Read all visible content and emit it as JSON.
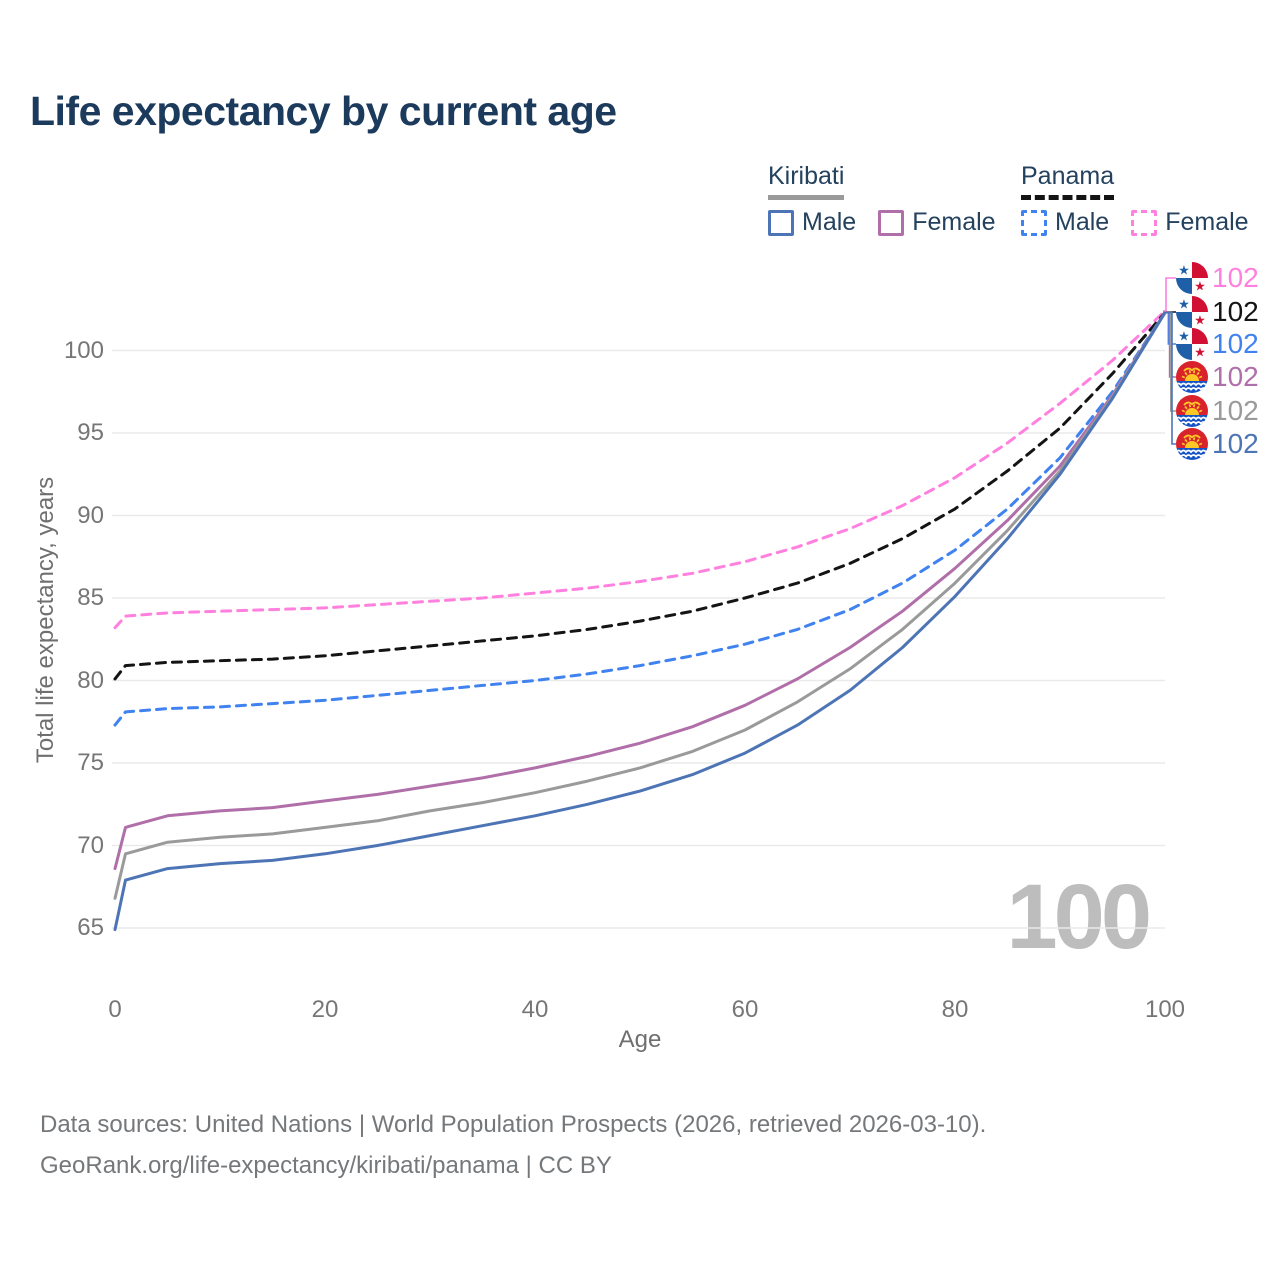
{
  "title": "Life expectancy by current age",
  "legend": {
    "groups": [
      {
        "country": "Kiribati",
        "line_style": "solid",
        "underline_color": "#9a9a9a",
        "items": [
          {
            "label": "Male",
            "color": "#4d74b5",
            "dashed": false
          },
          {
            "label": "Female",
            "color": "#b06fa9",
            "dashed": false
          }
        ]
      },
      {
        "country": "Panama",
        "line_style": "dashed",
        "underline_color": "#141414",
        "items": [
          {
            "label": "Male",
            "color": "#3f82f0",
            "dashed": true
          },
          {
            "label": "Female",
            "color": "#ff80df",
            "dashed": true
          }
        ]
      }
    ]
  },
  "axes": {
    "x": {
      "title": "Age",
      "ticks": [
        "0",
        "20",
        "40",
        "60",
        "80",
        "100"
      ]
    },
    "y": {
      "title": "Total life expectancy, years",
      "ticks": [
        "65",
        "70",
        "75",
        "80",
        "85",
        "90",
        "95",
        "100"
      ]
    }
  },
  "watermark": "100",
  "end_labels": [
    {
      "flag": "panama",
      "series": "Panama Female",
      "value": "102",
      "color": "#ff80df"
    },
    {
      "flag": "panama",
      "series": "Panama Both sexes",
      "value": "102",
      "color": "#141414"
    },
    {
      "flag": "panama",
      "series": "Panama Male",
      "value": "102",
      "color": "#3f82f0"
    },
    {
      "flag": "kiribati",
      "series": "Kiribati Female",
      "value": "102",
      "color": "#b06fa9"
    },
    {
      "flag": "kiribati",
      "series": "Kiribati Both sexes",
      "value": "102",
      "color": "#9a9a9a"
    },
    {
      "flag": "kiribati",
      "series": "Kiribati Male",
      "value": "102",
      "color": "#4d74b5"
    }
  ],
  "footer": {
    "line1": "Data sources: United Nations | World Population Prospects (2026, retrieved 2026-03-10).",
    "line2": "GeoRank.org/life-expectancy/kiribati/panama | CC BY"
  },
  "chart_data": {
    "type": "line",
    "title": "Life expectancy by current age",
    "xlabel": "Age",
    "ylabel": "Total life expectancy, years",
    "xlim": [
      0,
      100
    ],
    "ylim": [
      65,
      100
    ],
    "grid": "horizontal",
    "legend_position": "top-right",
    "x": [
      0,
      1,
      5,
      10,
      15,
      20,
      25,
      30,
      35,
      40,
      45,
      50,
      55,
      60,
      65,
      70,
      75,
      80,
      85,
      90,
      95,
      100
    ],
    "series": [
      {
        "name": "Panama Female",
        "country": "Panama",
        "sex": "Female",
        "color": "#ff80df",
        "dash": true,
        "values": [
          83.2,
          83.9,
          84.1,
          84.2,
          84.3,
          84.4,
          84.6,
          84.8,
          85.0,
          85.3,
          85.6,
          86.0,
          86.5,
          87.2,
          88.1,
          89.2,
          90.6,
          92.3,
          94.4,
          96.8,
          99.4,
          102.4
        ]
      },
      {
        "name": "Panama Both sexes",
        "country": "Panama",
        "sex": "Both",
        "color": "#141414",
        "dash": true,
        "values": [
          80.1,
          80.9,
          81.1,
          81.2,
          81.3,
          81.5,
          81.8,
          82.1,
          82.4,
          82.7,
          83.1,
          83.6,
          84.2,
          85.0,
          85.9,
          87.1,
          88.6,
          90.4,
          92.7,
          95.3,
          98.6,
          102.3
        ]
      },
      {
        "name": "Panama Male",
        "country": "Panama",
        "sex": "Male",
        "color": "#3f82f0",
        "dash": true,
        "values": [
          77.3,
          78.1,
          78.3,
          78.4,
          78.6,
          78.8,
          79.1,
          79.4,
          79.7,
          80.0,
          80.4,
          80.9,
          81.5,
          82.2,
          83.1,
          84.3,
          85.9,
          87.9,
          90.4,
          93.5,
          97.5,
          102.3
        ]
      },
      {
        "name": "Kiribati Female",
        "country": "Kiribati",
        "sex": "Female",
        "color": "#b06fa9",
        "dash": false,
        "values": [
          68.6,
          71.1,
          71.8,
          72.1,
          72.3,
          72.7,
          73.1,
          73.6,
          74.1,
          74.7,
          75.4,
          76.2,
          77.2,
          78.5,
          80.1,
          82.0,
          84.2,
          86.8,
          89.7,
          93.0,
          97.3,
          102.3
        ]
      },
      {
        "name": "Kiribati Both sexes",
        "country": "Kiribati",
        "sex": "Both",
        "color": "#9a9a9a",
        "dash": false,
        "values": [
          66.8,
          69.5,
          70.2,
          70.5,
          70.7,
          71.1,
          71.5,
          72.1,
          72.6,
          73.2,
          73.9,
          74.7,
          75.7,
          77.0,
          78.7,
          80.7,
          83.1,
          85.9,
          89.1,
          92.7,
          97.2,
          102.3
        ]
      },
      {
        "name": "Kiribati Male",
        "country": "Kiribati",
        "sex": "Male",
        "color": "#4d74b5",
        "dash": false,
        "values": [
          64.9,
          67.9,
          68.6,
          68.9,
          69.1,
          69.5,
          70.0,
          70.6,
          71.2,
          71.8,
          72.5,
          73.3,
          74.3,
          75.6,
          77.3,
          79.4,
          82.0,
          85.1,
          88.6,
          92.5,
          97.1,
          102.3
        ]
      }
    ]
  }
}
